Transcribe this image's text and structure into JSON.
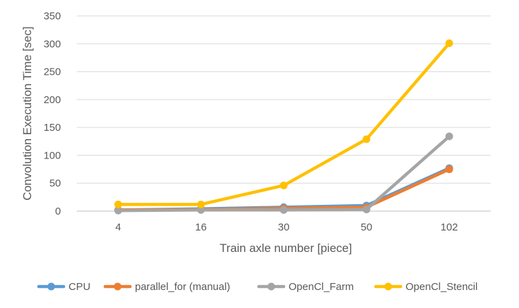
{
  "chart_data": {
    "type": "line",
    "title": "",
    "xlabel": "Train axle number [piece]",
    "ylabel": "Convolution Execution Time [sec]",
    "categories": [
      "4",
      "16",
      "30",
      "50",
      "102"
    ],
    "ylim": [
      0,
      350
    ],
    "yticks": [
      0,
      50,
      100,
      150,
      200,
      250,
      300,
      350
    ],
    "grid": true,
    "legend_position": "bottom",
    "series": [
      {
        "name": "CPU",
        "color": "#5B9BD5",
        "values": [
          2,
          4,
          7,
          10,
          77
        ]
      },
      {
        "name": "parallel_for (manual)",
        "color": "#ED7D31",
        "values": [
          2,
          3,
          5,
          7,
          75
        ]
      },
      {
        "name": "OpenCl_Farm",
        "color": "#A5A5A5",
        "values": [
          1,
          2,
          2,
          3,
          134
        ]
      },
      {
        "name": "OpenCl_Stencil",
        "color": "#FFC000",
        "values": [
          12,
          12,
          46,
          129,
          301
        ]
      }
    ]
  }
}
